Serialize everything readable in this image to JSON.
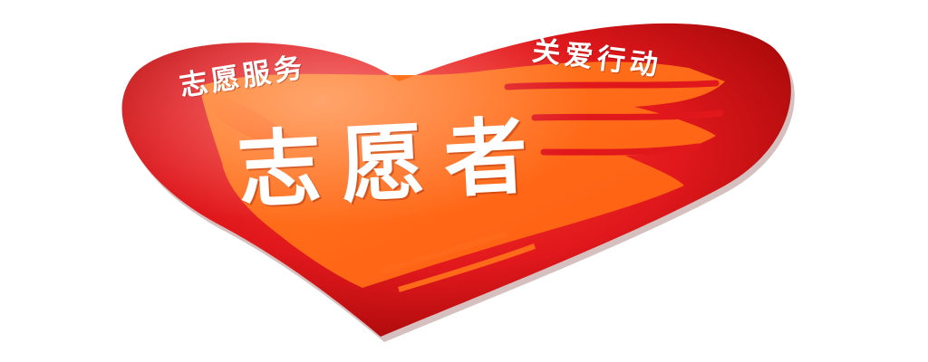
{
  "logo": {
    "title": "志愿者",
    "caption_left": "志愿服务",
    "caption_right": "关爱行动"
  },
  "colors": {
    "heart_red": "#e0181c",
    "heart_dark": "#a80a0a",
    "hand_orange": "#ff6a1a",
    "text": "#ffffff"
  }
}
